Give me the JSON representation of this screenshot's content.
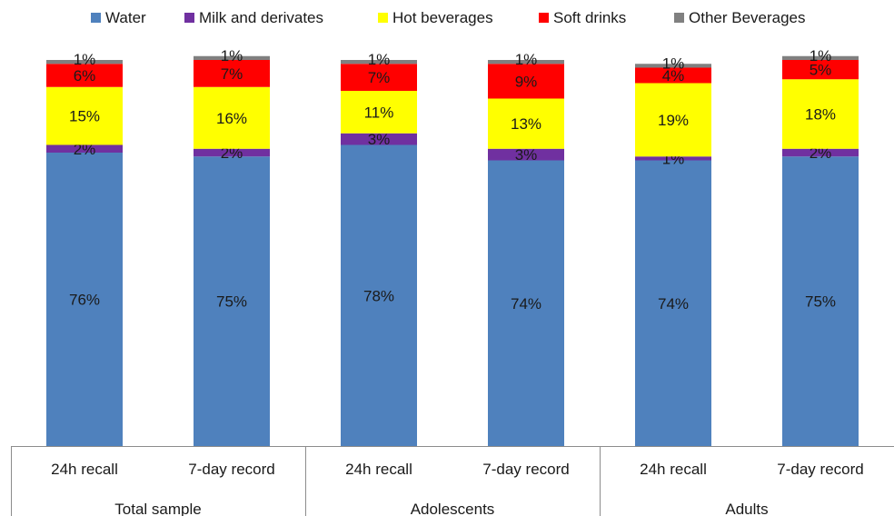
{
  "chart_data": {
    "type": "bar",
    "stacked": true,
    "percent_stacked": true,
    "title": "",
    "xlabel": "",
    "ylabel": "",
    "ylim": [
      0,
      100
    ],
    "grid": false,
    "legend_position": "top",
    "groups": [
      {
        "label": "Total sample",
        "categories": [
          "24h recall",
          "7-day record"
        ]
      },
      {
        "label": "Adolescents",
        "categories": [
          "24h recall",
          "7-day record"
        ]
      },
      {
        "label": "Adults",
        "categories": [
          "24h recall",
          "7-day record"
        ]
      }
    ],
    "series": [
      {
        "name": "Water",
        "color": "#4f81bd",
        "values": [
          76,
          75,
          78,
          74,
          74,
          75
        ],
        "labels": [
          "76%",
          "75%",
          "78%",
          "74%",
          "74%",
          "75%"
        ]
      },
      {
        "name": "Milk and derivates",
        "color": "#7030a0",
        "values": [
          2,
          2,
          3,
          3,
          1,
          2
        ],
        "labels": [
          "2%",
          "2%",
          "3%",
          "3%",
          "1%",
          "2%"
        ]
      },
      {
        "name": "Hot beverages",
        "color": "#ffff00",
        "values": [
          15,
          16,
          11,
          13,
          19,
          18
        ],
        "labels": [
          "15%",
          "16%",
          "11%",
          "13%",
          "19%",
          "18%"
        ]
      },
      {
        "name": "Soft drinks",
        "color": "#ff0000",
        "values": [
          6,
          7,
          7,
          9,
          4,
          5
        ],
        "labels": [
          "6%",
          "7%",
          "7%",
          "9%",
          "4%",
          "5%"
        ]
      },
      {
        "name": "Other Beverages",
        "color": "#808080",
        "values": [
          1,
          1,
          1,
          1,
          1,
          1
        ],
        "labels": [
          "1%",
          "1%",
          "1%",
          "1%",
          "1%",
          "1%"
        ]
      }
    ]
  }
}
